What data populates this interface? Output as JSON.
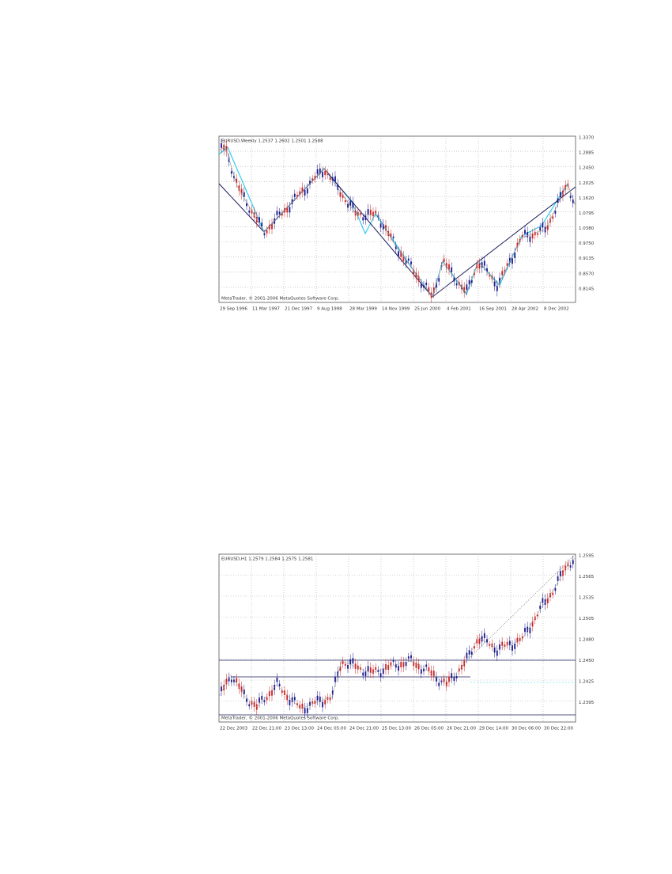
{
  "charts": [
    {
      "header": "EURUSD,Weekly 1.2537 1.2602 1.2501 1.2588",
      "copyright": "MetaTrader, © 2001-2006 MetaQuotes Software Corp.",
      "y_labels": [
        "1.3370",
        "1.2885",
        "1.2450",
        "1.2025",
        "1.1620",
        "1.0795",
        "1.0380",
        "0.9750",
        "0.9135",
        "0.8570",
        "0.8145"
      ],
      "x_labels": [
        "29 Sep 1996",
        "11 Mar 1997",
        "21 Dec 1997",
        "9 Aug 1998",
        "28 Mar 1999",
        "14 Nov 1999",
        "25 Jun 2000",
        "4 Feb 2001",
        "16 Sep 2001",
        "28 Apr 2002",
        "8 Dec 2002"
      ]
    },
    {
      "header": "EURUSD,H1 1.2579 1.2584 1.2575 1.2581",
      "copyright": "MetaTrader, © 2001-2006 MetaQuotes Software Corp.",
      "y_labels": [
        "1.2595",
        "1.2565",
        "1.2535",
        "1.2505",
        "1.2480",
        "1.2450",
        "1.2425",
        "1.2395"
      ],
      "x_labels": [
        "22 Dec 2003",
        "22 Dec 21:00",
        "23 Dec 13:00",
        "24 Dec 05:00",
        "24 Dec 21:00",
        "25 Dec 13:00",
        "26 Dec 05:00",
        "26 Dec 21:00",
        "29 Dec 14:00",
        "30 Dec 06:00",
        "30 Dec 22:00"
      ]
    }
  ]
}
